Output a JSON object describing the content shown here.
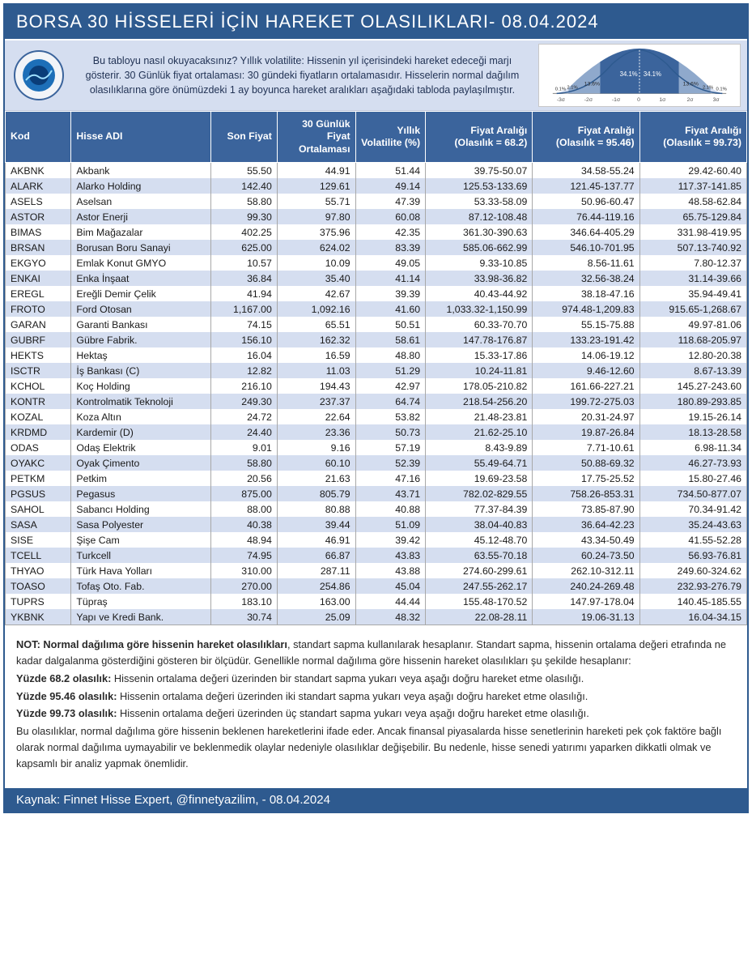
{
  "title": "BORSA 30 HİSSELERİ İÇİN HAREKET OLASILIKLARI- 08.04.2024",
  "intro": "Bu tabloyu nasıl okuyacaksınız? Yıllık volatilite: Hissenin yıl içerisindeki hareket edeceği marjı gösterir. 30 Günlük fiyat ortalaması: 30 gündeki fiyatların ortalamasıdır. Hisselerin normal dağılım olasılıklarına göre önümüzdeki 1 ay boyunca hareket aralıkları aşağıdaki tabloda paylaşılmıştır.",
  "dist_chart": {
    "bg": "#ffffff",
    "fill_center": "#3b649c",
    "fill_mid": "#8fa9cc",
    "fill_tail": "#d5def0",
    "line_color": "#3b649c",
    "labels_sigma": [
      "-3σ",
      "-2σ",
      "-1σ",
      "0",
      "1σ",
      "2σ",
      "3σ"
    ],
    "labels_pct_center": "34.1%",
    "labels_pct_mid": "13.6%",
    "labels_pct_tail1": "2.1%",
    "labels_pct_tail2": "0.1%"
  },
  "columns": {
    "kod": "Kod",
    "name": "Hisse ADI",
    "last": "Son Fiyat",
    "avg": "30 Günlük Fiyat Ortalaması",
    "vol": "Yıllık Volatilite (%)",
    "r1": "Fiyat Aralığı (Olasılık = 68.2)",
    "r2": "Fiyat Aralığı (Olasılık = 95.46)",
    "r3": "Fiyat Aralığı (Olasılık = 99.73)"
  },
  "rows": [
    {
      "kod": "AKBNK",
      "name": "Akbank",
      "last": "55.50",
      "avg": "44.91",
      "vol": "51.44",
      "r1": "39.75-50.07",
      "r2": "34.58-55.24",
      "r3": "29.42-60.40"
    },
    {
      "kod": "ALARK",
      "name": "Alarko Holding",
      "last": "142.40",
      "avg": "129.61",
      "vol": "49.14",
      "r1": "125.53-133.69",
      "r2": "121.45-137.77",
      "r3": "117.37-141.85"
    },
    {
      "kod": "ASELS",
      "name": "Aselsan",
      "last": "58.80",
      "avg": "55.71",
      "vol": "47.39",
      "r1": "53.33-58.09",
      "r2": "50.96-60.47",
      "r3": "48.58-62.84"
    },
    {
      "kod": "ASTOR",
      "name": "Astor Enerji",
      "last": "99.30",
      "avg": "97.80",
      "vol": "60.08",
      "r1": "87.12-108.48",
      "r2": "76.44-119.16",
      "r3": "65.75-129.84"
    },
    {
      "kod": "BIMAS",
      "name": "Bim Mağazalar",
      "last": "402.25",
      "avg": "375.96",
      "vol": "42.35",
      "r1": "361.30-390.63",
      "r2": "346.64-405.29",
      "r3": "331.98-419.95"
    },
    {
      "kod": "BRSAN",
      "name": "Borusan Boru Sanayi",
      "last": "625.00",
      "avg": "624.02",
      "vol": "83.39",
      "r1": "585.06-662.99",
      "r2": "546.10-701.95",
      "r3": "507.13-740.92"
    },
    {
      "kod": "EKGYO",
      "name": "Emlak Konut GMYO",
      "last": "10.57",
      "avg": "10.09",
      "vol": "49.05",
      "r1": "9.33-10.85",
      "r2": "8.56-11.61",
      "r3": "7.80-12.37"
    },
    {
      "kod": "ENKAI",
      "name": "Enka İnşaat",
      "last": "36.84",
      "avg": "35.40",
      "vol": "41.14",
      "r1": "33.98-36.82",
      "r2": "32.56-38.24",
      "r3": "31.14-39.66"
    },
    {
      "kod": "EREGL",
      "name": "Ereğli Demir Çelik",
      "last": "41.94",
      "avg": "42.67",
      "vol": "39.39",
      "r1": "40.43-44.92",
      "r2": "38.18-47.16",
      "r3": "35.94-49.41"
    },
    {
      "kod": "FROTO",
      "name": "Ford Otosan",
      "last": "1,167.00",
      "avg": "1,092.16",
      "vol": "41.60",
      "r1": "1,033.32-1,150.99",
      "r2": "974.48-1,209.83",
      "r3": "915.65-1,268.67"
    },
    {
      "kod": "GARAN",
      "name": "Garanti Bankası",
      "last": "74.15",
      "avg": "65.51",
      "vol": "50.51",
      "r1": "60.33-70.70",
      "r2": "55.15-75.88",
      "r3": "49.97-81.06"
    },
    {
      "kod": "GUBRF",
      "name": "Gübre Fabrik.",
      "last": "156.10",
      "avg": "162.32",
      "vol": "58.61",
      "r1": "147.78-176.87",
      "r2": "133.23-191.42",
      "r3": "118.68-205.97"
    },
    {
      "kod": "HEKTS",
      "name": "Hektaş",
      "last": "16.04",
      "avg": "16.59",
      "vol": "48.80",
      "r1": "15.33-17.86",
      "r2": "14.06-19.12",
      "r3": "12.80-20.38"
    },
    {
      "kod": "ISCTR",
      "name": "İş Bankası (C)",
      "last": "12.82",
      "avg": "11.03",
      "vol": "51.29",
      "r1": "10.24-11.81",
      "r2": "9.46-12.60",
      "r3": "8.67-13.39"
    },
    {
      "kod": "KCHOL",
      "name": "Koç Holding",
      "last": "216.10",
      "avg": "194.43",
      "vol": "42.97",
      "r1": "178.05-210.82",
      "r2": "161.66-227.21",
      "r3": "145.27-243.60"
    },
    {
      "kod": "KONTR",
      "name": "Kontrolmatik Teknoloji",
      "last": "249.30",
      "avg": "237.37",
      "vol": "64.74",
      "r1": "218.54-256.20",
      "r2": "199.72-275.03",
      "r3": "180.89-293.85"
    },
    {
      "kod": "KOZAL",
      "name": "Koza Altın",
      "last": "24.72",
      "avg": "22.64",
      "vol": "53.82",
      "r1": "21.48-23.81",
      "r2": "20.31-24.97",
      "r3": "19.15-26.14"
    },
    {
      "kod": "KRDMD",
      "name": "Kardemir (D)",
      "last": "24.40",
      "avg": "23.36",
      "vol": "50.73",
      "r1": "21.62-25.10",
      "r2": "19.87-26.84",
      "r3": "18.13-28.58"
    },
    {
      "kod": "ODAS",
      "name": "Odaş Elektrik",
      "last": "9.01",
      "avg": "9.16",
      "vol": "57.19",
      "r1": "8.43-9.89",
      "r2": "7.71-10.61",
      "r3": "6.98-11.34"
    },
    {
      "kod": "OYAKC",
      "name": "Oyak Çimento",
      "last": "58.80",
      "avg": "60.10",
      "vol": "52.39",
      "r1": "55.49-64.71",
      "r2": "50.88-69.32",
      "r3": "46.27-73.93"
    },
    {
      "kod": "PETKM",
      "name": "Petkim",
      "last": "20.56",
      "avg": "21.63",
      "vol": "47.16",
      "r1": "19.69-23.58",
      "r2": "17.75-25.52",
      "r3": "15.80-27.46"
    },
    {
      "kod": "PGSUS",
      "name": "Pegasus",
      "last": "875.00",
      "avg": "805.79",
      "vol": "43.71",
      "r1": "782.02-829.55",
      "r2": "758.26-853.31",
      "r3": "734.50-877.07"
    },
    {
      "kod": "SAHOL",
      "name": "Sabancı Holding",
      "last": "88.00",
      "avg": "80.88",
      "vol": "40.88",
      "r1": "77.37-84.39",
      "r2": "73.85-87.90",
      "r3": "70.34-91.42"
    },
    {
      "kod": "SASA",
      "name": "Sasa Polyester",
      "last": "40.38",
      "avg": "39.44",
      "vol": "51.09",
      "r1": "38.04-40.83",
      "r2": "36.64-42.23",
      "r3": "35.24-43.63"
    },
    {
      "kod": "SISE",
      "name": "Şişe Cam",
      "last": "48.94",
      "avg": "46.91",
      "vol": "39.42",
      "r1": "45.12-48.70",
      "r2": "43.34-50.49",
      "r3": "41.55-52.28"
    },
    {
      "kod": "TCELL",
      "name": "Turkcell",
      "last": "74.95",
      "avg": "66.87",
      "vol": "43.83",
      "r1": "63.55-70.18",
      "r2": "60.24-73.50",
      "r3": "56.93-76.81"
    },
    {
      "kod": "THYAO",
      "name": "Türk Hava Yolları",
      "last": "310.00",
      "avg": "287.11",
      "vol": "43.88",
      "r1": "274.60-299.61",
      "r2": "262.10-312.11",
      "r3": "249.60-324.62"
    },
    {
      "kod": "TOASO",
      "name": "Tofaş Oto. Fab.",
      "last": "270.00",
      "avg": "254.86",
      "vol": "45.04",
      "r1": "247.55-262.17",
      "r2": "240.24-269.48",
      "r3": "232.93-276.79"
    },
    {
      "kod": "TUPRS",
      "name": "Tüpraş",
      "last": "183.10",
      "avg": "163.00",
      "vol": "44.44",
      "r1": "155.48-170.52",
      "r2": "147.97-178.04",
      "r3": "140.45-185.55"
    },
    {
      "kod": "YKBNK",
      "name": "Yapı ve Kredi Bank.",
      "last": "30.74",
      "avg": "25.09",
      "vol": "48.32",
      "r1": "22.08-28.11",
      "r2": "19.06-31.13",
      "r3": "16.04-34.15"
    }
  ],
  "notes": {
    "lead_bold": "NOT: Normal dağılıma göre hissenin hareket olasılıkları",
    "lead_rest": ", standart sapma kullanılarak hesaplanır. Standart sapma, hissenin ortalama değeri etrafında ne kadar dalgalanma gösterdiğini gösteren bir ölçüdür. Genellikle normal dağılıma göre hissenin hareket olasılıkları şu şekilde hesaplanır:",
    "p68_bold": "Yüzde 68.2 olasılık:",
    "p68_rest": " Hissenin ortalama değeri üzerinden bir standart sapma yukarı veya aşağı doğru hareket etme olasılığı.",
    "p95_bold": "Yüzde 95.46 olasılık:",
    "p95_rest": " Hissenin ortalama değeri üzerinden iki standart sapma yukarı veya aşağı doğru hareket etme olasılığı.",
    "p99_bold": "Yüzde 99.73 olasılık:",
    "p99_rest": " Hissenin ortalama değeri üzerinden üç standart sapma yukarı veya aşağı doğru hareket etme olasılığı.",
    "tail": "Bu olasılıklar, normal dağılıma göre hissenin beklenen hareketlerini ifade eder. Ancak finansal piyasalarda hisse senetlerinin hareketi pek çok faktöre bağlı olarak normal dağılıma uymayabilir ve beklenmedik olaylar nedeniyle olasılıklar değişebilir. Bu nedenle, hisse senedi yatırımı yaparken dikkatli olmak ve kapsamlı bir analiz yapmak önemlidir."
  },
  "footer": "Kaynak: Finnet Hisse Expert, @finnetyazilim, - 08.04.2024",
  "colors": {
    "header_bg": "#2e5a8f",
    "thead_bg": "#3b649c",
    "band_b": "#d5def0"
  }
}
